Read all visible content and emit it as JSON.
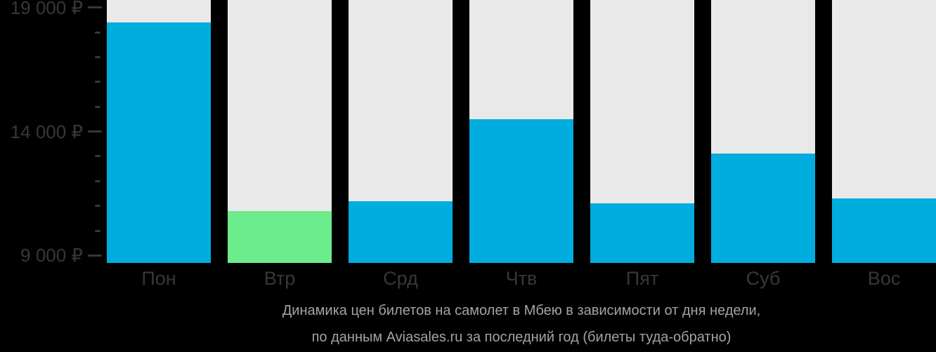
{
  "colors": {
    "background": "#000000",
    "track": "#e9e9e9",
    "bar": "#00adde",
    "bar_lowest": "#6cec8c",
    "axis_text": "#34383b",
    "caption_text": "#a3a3a3"
  },
  "chart_data": {
    "type": "bar",
    "categories": [
      "Пон",
      "Втр",
      "Срд",
      "Чтв",
      "Пят",
      "Суб",
      "Вос"
    ],
    "values": [
      18400,
      10800,
      11200,
      14500,
      11100,
      13100,
      11300
    ],
    "lowest_index": 1,
    "currency": "₽",
    "title": "Динамика цен билетов на самолет в Мбею в зависимости от дня недели, по данным Aviasales.ru за последний год (билеты туда-обратно)",
    "xlabel": "",
    "ylabel": "",
    "ylim": [
      8700,
      19300
    ],
    "grid": false,
    "legend": false,
    "y_major_ticks": [
      {
        "value": 9000,
        "label": "9 000 ₽"
      },
      {
        "value": 14000,
        "label": "14 000 ₽"
      },
      {
        "value": 19000,
        "label": "19 000 ₽"
      }
    ],
    "y_minor_tick_values": [
      10000,
      11000,
      12000,
      13000,
      15000,
      16000,
      17000,
      18000
    ]
  },
  "caption": {
    "line1": "Динамика цен билетов на самолет в Мбею в зависимости от дня недели,",
    "line2": "по данным Aviasales.ru за последний год (билеты туда-обратно)"
  }
}
